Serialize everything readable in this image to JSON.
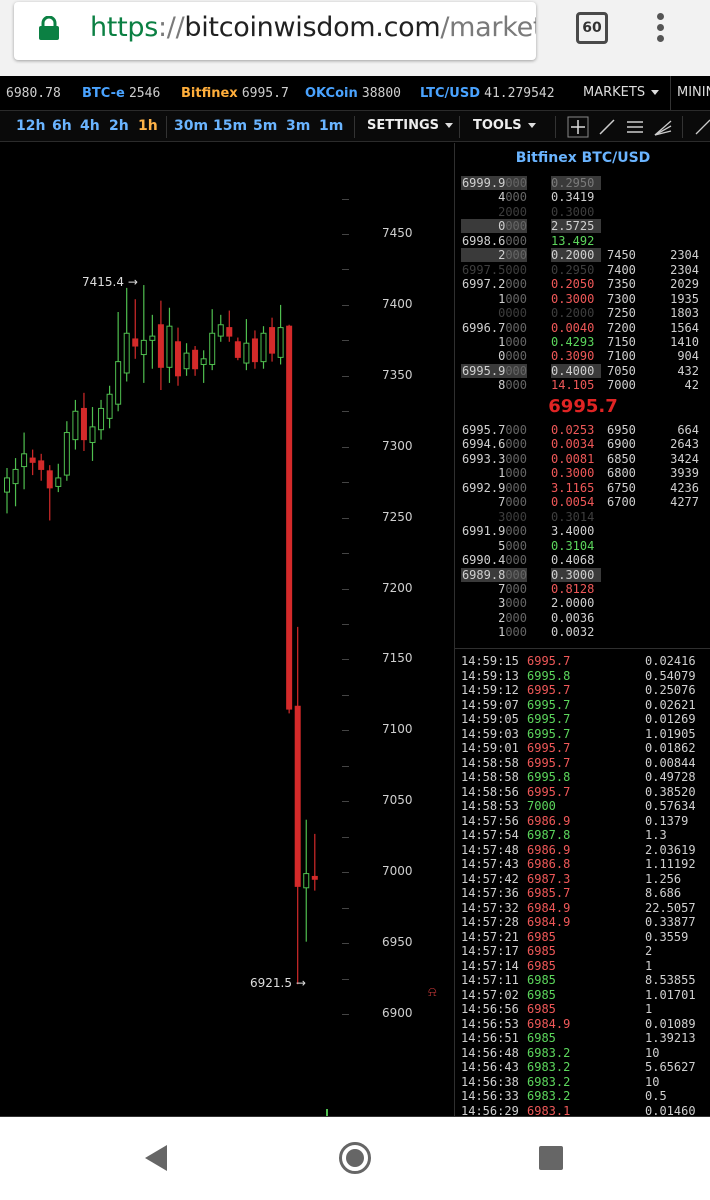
{
  "browser": {
    "url_scheme": "https",
    "url_sep": "://",
    "url_host": "bitcoinwisdom.com",
    "url_path": "/markets/",
    "tab_count": "60"
  },
  "ticker": [
    {
      "exchange": "",
      "price": "6980.78"
    },
    {
      "exchange": "BTC-e",
      "price": "2546"
    },
    {
      "exchange": "Bitfinex",
      "price": "6995.7"
    },
    {
      "exchange": "OKCoin",
      "price": "38800"
    },
    {
      "exchange": "LTC/USD",
      "price": "41.279542"
    }
  ],
  "nav": {
    "markets": "MARKETS",
    "mining": "MININ"
  },
  "toolbar": {
    "intervals_long": [
      "12h",
      "6h",
      "4h",
      "2h",
      "1h"
    ],
    "intervals_short": [
      "30m",
      "15m",
      "5m",
      "3m",
      "1m"
    ],
    "active_interval": "1h",
    "settings": "SETTINGS",
    "tools": "TOOLS"
  },
  "chart": {
    "y_ticks": [
      "7450",
      "7400",
      "7350",
      "7300",
      "7250",
      "7200",
      "7150",
      "7100",
      "7050",
      "7000",
      "6950",
      "6900"
    ],
    "high_label": "7415.4",
    "low_label": "6921.5",
    "colors": {
      "up": "#4fbf4f",
      "down": "#d42a2a",
      "bg": "#000000"
    }
  },
  "chart_data": {
    "type": "candlestick",
    "y_range": [
      6880,
      7480
    ],
    "candles": [
      {
        "o": 7268,
        "c": 7278,
        "h": 7285,
        "l": 7253
      },
      {
        "o": 7274,
        "c": 7284,
        "h": 7292,
        "l": 7258
      },
      {
        "o": 7286,
        "c": 7295,
        "h": 7310,
        "l": 7270
      },
      {
        "o": 7292,
        "c": 7289,
        "h": 7298,
        "l": 7280
      },
      {
        "o": 7290,
        "c": 7284,
        "h": 7295,
        "l": 7276
      },
      {
        "o": 7283,
        "c": 7271,
        "h": 7287,
        "l": 7248
      },
      {
        "o": 7272,
        "c": 7278,
        "h": 7288,
        "l": 7268
      },
      {
        "o": 7280,
        "c": 7310,
        "h": 7318,
        "l": 7276
      },
      {
        "o": 7305,
        "c": 7325,
        "h": 7333,
        "l": 7298
      },
      {
        "o": 7327,
        "c": 7305,
        "h": 7338,
        "l": 7297
      },
      {
        "o": 7303,
        "c": 7314,
        "h": 7328,
        "l": 7290
      },
      {
        "o": 7312,
        "c": 7327,
        "h": 7333,
        "l": 7305
      },
      {
        "o": 7320,
        "c": 7337,
        "h": 7343,
        "l": 7313
      },
      {
        "o": 7330,
        "c": 7360,
        "h": 7395,
        "l": 7325
      },
      {
        "o": 7352,
        "c": 7380,
        "h": 7412,
        "l": 7346
      },
      {
        "o": 7376,
        "c": 7371,
        "h": 7404,
        "l": 7362
      },
      {
        "o": 7365,
        "c": 7375,
        "h": 7414,
        "l": 7345
      },
      {
        "o": 7375,
        "c": 7378,
        "h": 7393,
        "l": 7355
      },
      {
        "o": 7386,
        "c": 7356,
        "h": 7403,
        "l": 7340
      },
      {
        "o": 7356,
        "c": 7385,
        "h": 7398,
        "l": 7345
      },
      {
        "o": 7374,
        "c": 7350,
        "h": 7384,
        "l": 7343
      },
      {
        "o": 7355,
        "c": 7366,
        "h": 7373,
        "l": 7350
      },
      {
        "o": 7368,
        "c": 7355,
        "h": 7371,
        "l": 7350
      },
      {
        "o": 7358,
        "c": 7362,
        "h": 7368,
        "l": 7345
      },
      {
        "o": 7358,
        "c": 7380,
        "h": 7397,
        "l": 7354
      },
      {
        "o": 7378,
        "c": 7386,
        "h": 7393,
        "l": 7374
      },
      {
        "o": 7384,
        "c": 7378,
        "h": 7396,
        "l": 7374
      },
      {
        "o": 7374,
        "c": 7363,
        "h": 7377,
        "l": 7361
      },
      {
        "o": 7359,
        "c": 7373,
        "h": 7390,
        "l": 7354
      },
      {
        "o": 7376,
        "c": 7360,
        "h": 7382,
        "l": 7355
      },
      {
        "o": 7360,
        "c": 7380,
        "h": 7385,
        "l": 7355
      },
      {
        "o": 7384,
        "c": 7366,
        "h": 7391,
        "l": 7360
      },
      {
        "o": 7363,
        "c": 7384,
        "h": 7400,
        "l": 7358
      },
      {
        "o": 7385,
        "c": 7115,
        "h": 7386,
        "l": 7112
      },
      {
        "o": 7117,
        "c": 6990,
        "h": 7173,
        "l": 6921
      },
      {
        "o": 6989,
        "c": 6999,
        "h": 7037,
        "l": 6951
      },
      {
        "o": 6997,
        "c": 6995,
        "h": 7027,
        "l": 6987
      }
    ]
  },
  "orderbook": {
    "title": "Bitfinex BTC/USD",
    "last_price": "6995.7",
    "asks": [
      {
        "p_main": "6999.9",
        "p_dim": "000",
        "amt": "0.2950",
        "amt_color": "dim",
        "hl": true
      },
      {
        "p_main": "4",
        "p_dim": "000",
        "amt": "0.3419",
        "amt_color": "white"
      },
      {
        "p_main": "2",
        "p_dim": "000",
        "amt": "0.3000",
        "amt_color": "white",
        "ghost": true
      },
      {
        "p_main": "0",
        "p_dim": "000",
        "amt": "2.5725",
        "amt_color": "white",
        "hl": true
      },
      {
        "p_main": "6998.6",
        "p_dim": "000",
        "amt": "13.492",
        "amt_color": "green"
      },
      {
        "p_main": "2",
        "p_dim": "000",
        "amt": "0.2000",
        "amt_color": "white",
        "hl": true,
        "cp": "7450",
        "cv": "2304"
      },
      {
        "p_main": "6997.5",
        "p_dim": "000",
        "amt": "0.2950",
        "amt_color": "white",
        "ghost": true,
        "cp": "7400",
        "cv": "2304"
      },
      {
        "p_main": "6997.2",
        "p_dim": "000",
        "amt": "0.2050",
        "amt_color": "red",
        "cp": "7350",
        "cv": "2029"
      },
      {
        "p_main": "1",
        "p_dim": "000",
        "amt": "0.3000",
        "amt_color": "red",
        "cp": "7300",
        "cv": "1935"
      },
      {
        "p_main": "0",
        "p_dim": "000",
        "amt": "0.2000",
        "amt_color": "white",
        "ghost": true,
        "cp": "7250",
        "cv": "1803"
      },
      {
        "p_main": "6996.7",
        "p_dim": "000",
        "amt": "0.0040",
        "amt_color": "red",
        "cp": "7200",
        "cv": "1564"
      },
      {
        "p_main": "1",
        "p_dim": "000",
        "amt": "0.4293",
        "amt_color": "green",
        "cp": "7150",
        "cv": "1410"
      },
      {
        "p_main": "0",
        "p_dim": "000",
        "amt": "0.3090",
        "amt_color": "red",
        "cp": "7100",
        "cv": "904"
      },
      {
        "p_main": "6995.9",
        "p_dim": "000",
        "amt": "0.4000",
        "amt_color": "white",
        "hl": true,
        "cp": "7050",
        "cv": "432"
      },
      {
        "p_main": "8",
        "p_dim": "000",
        "amt": "14.105",
        "amt_color": "red",
        "cp": "7000",
        "cv": "42"
      }
    ],
    "bids": [
      {
        "p_main": "6995.7",
        "p_dim": "000",
        "amt": "0.0253",
        "amt_color": "red",
        "cp": "6950",
        "cv": "664"
      },
      {
        "p_main": "6994.6",
        "p_dim": "000",
        "amt": "0.0034",
        "amt_color": "red",
        "cp": "6900",
        "cv": "2643"
      },
      {
        "p_main": "6993.3",
        "p_dim": "000",
        "amt": "0.0081",
        "amt_color": "red",
        "cp": "6850",
        "cv": "3424"
      },
      {
        "p_main": "1",
        "p_dim": "000",
        "amt": "0.3000",
        "amt_color": "red",
        "cp": "6800",
        "cv": "3939"
      },
      {
        "p_main": "6992.9",
        "p_dim": "000",
        "amt": "3.1165",
        "amt_color": "red",
        "cp": "6750",
        "cv": "4236"
      },
      {
        "p_main": "7",
        "p_dim": "000",
        "amt": "0.0054",
        "amt_color": "red",
        "cp": "6700",
        "cv": "4277"
      },
      {
        "p_main": "3",
        "p_dim": "000",
        "amt": "0.3014",
        "amt_color": "white",
        "ghost": true
      },
      {
        "p_main": "6991.9",
        "p_dim": "000",
        "amt": "3.4000",
        "amt_color": "white"
      },
      {
        "p_main": "5",
        "p_dim": "000",
        "amt": "0.3104",
        "amt_color": "green"
      },
      {
        "p_main": "6990.4",
        "p_dim": "000",
        "amt": "0.4068",
        "amt_color": "white"
      },
      {
        "p_main": "6989.8",
        "p_dim": "000",
        "amt": "0.3000",
        "amt_color": "white",
        "hl": true
      },
      {
        "p_main": "7",
        "p_dim": "000",
        "amt": "0.8128",
        "amt_color": "red"
      },
      {
        "p_main": "3",
        "p_dim": "000",
        "amt": "2.0000",
        "amt_color": "white"
      },
      {
        "p_main": "2",
        "p_dim": "000",
        "amt": "0.0036",
        "amt_color": "white"
      },
      {
        "p_main": "1",
        "p_dim": "000",
        "amt": "0.0032",
        "amt_color": "white"
      }
    ]
  },
  "trades": [
    {
      "time": "14:59:15",
      "price": "6995.7",
      "side": "red",
      "amount": "0.02416"
    },
    {
      "time": "14:59:13",
      "price": "6995.8",
      "side": "green",
      "amount": "0.54079"
    },
    {
      "time": "14:59:12",
      "price": "6995.7",
      "side": "red",
      "amount": "0.25076"
    },
    {
      "time": "14:59:07",
      "price": "6995.7",
      "side": "green",
      "amount": "0.02621"
    },
    {
      "time": "14:59:05",
      "price": "6995.7",
      "side": "green",
      "amount": "0.01269"
    },
    {
      "time": "14:59:03",
      "price": "6995.7",
      "side": "green",
      "amount": "1.01905"
    },
    {
      "time": "14:59:01",
      "price": "6995.7",
      "side": "red",
      "amount": "0.01862"
    },
    {
      "time": "14:58:58",
      "price": "6995.7",
      "side": "red",
      "amount": "0.00844"
    },
    {
      "time": "14:58:58",
      "price": "6995.8",
      "side": "green",
      "amount": "0.49728"
    },
    {
      "time": "14:58:56",
      "price": "6995.7",
      "side": "red",
      "amount": "0.38520"
    },
    {
      "time": "14:58:53",
      "price": "7000",
      "side": "green",
      "amount": "0.57634"
    },
    {
      "time": "14:57:56",
      "price": "6986.9",
      "side": "red",
      "amount": "0.1379"
    },
    {
      "time": "14:57:54",
      "price": "6987.8",
      "side": "green",
      "amount": "1.3"
    },
    {
      "time": "14:57:48",
      "price": "6986.9",
      "side": "red",
      "amount": "2.03619"
    },
    {
      "time": "14:57:43",
      "price": "6986.8",
      "side": "red",
      "amount": "1.11192"
    },
    {
      "time": "14:57:42",
      "price": "6987.3",
      "side": "red",
      "amount": "1.256"
    },
    {
      "time": "14:57:36",
      "price": "6985.7",
      "side": "red",
      "amount": "8.686"
    },
    {
      "time": "14:57:32",
      "price": "6984.9",
      "side": "red",
      "amount": "22.5057"
    },
    {
      "time": "14:57:28",
      "price": "6984.9",
      "side": "red",
      "amount": "0.33877"
    },
    {
      "time": "14:57:21",
      "price": "6985",
      "side": "red",
      "amount": "0.3559"
    },
    {
      "time": "14:57:17",
      "price": "6985",
      "side": "red",
      "amount": "2"
    },
    {
      "time": "14:57:14",
      "price": "6985",
      "side": "red",
      "amount": "1"
    },
    {
      "time": "14:57:11",
      "price": "6985",
      "side": "green",
      "amount": "8.53855"
    },
    {
      "time": "14:57:02",
      "price": "6985",
      "side": "green",
      "amount": "1.01701"
    },
    {
      "time": "14:56:56",
      "price": "6985",
      "side": "red",
      "amount": "1"
    },
    {
      "time": "14:56:53",
      "price": "6984.9",
      "side": "red",
      "amount": "0.01089"
    },
    {
      "time": "14:56:51",
      "price": "6985",
      "side": "green",
      "amount": "1.39213"
    },
    {
      "time": "14:56:48",
      "price": "6983.2",
      "side": "green",
      "amount": "10"
    },
    {
      "time": "14:56:43",
      "price": "6983.2",
      "side": "green",
      "amount": "5.65627"
    },
    {
      "time": "14:56:38",
      "price": "6983.2",
      "side": "green",
      "amount": "10"
    },
    {
      "time": "14:56:33",
      "price": "6983.2",
      "side": "green",
      "amount": "0.5"
    },
    {
      "time": "14:56:29",
      "price": "6983.1",
      "side": "red",
      "amount": "0.01460"
    }
  ]
}
